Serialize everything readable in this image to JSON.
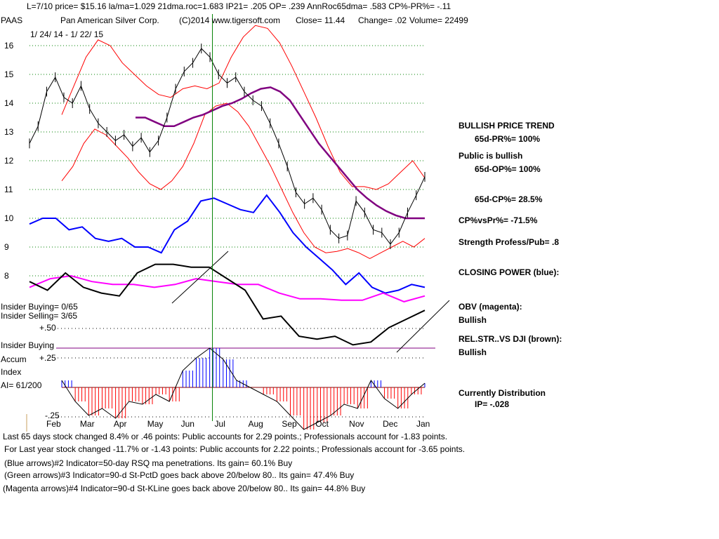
{
  "header": {
    "line1": "L=7/10  price= $15.16  la/ma=1.029 21dma.roc=1.683 IP21= .205 OP= .239 AnnRoc65dma= .583 CP%-PR%= -.11",
    "ticker": "PAAS",
    "company": "Pan American Silver Corp.",
    "copyright": "(C)2014 www.tigersoft.com",
    "close": "Close=  11.44",
    "change": "Change= .02",
    "volume": "Volume= 22499",
    "date_range": "1/ 24/ 14 - 1/ 22/ 15"
  },
  "colors": {
    "price": "#000000",
    "bands": "#ff0000",
    "ma65": "#800080",
    "closing_power": "#0000ff",
    "obv": "#ff00ff",
    "rel_str": "#000000",
    "signal_line": "#008000",
    "accum_pos": "#0000ff",
    "accum_neg": "#ff0000"
  },
  "side": {
    "trend": "BULLISH PRICE TREND",
    "pr": "65d-PR%= 100%",
    "public": "Public is bullish",
    "op": "65d-OP%= 100%",
    "cp": "65d-CP%= 28.5%",
    "cpvspr": "CP%vsPr%= -71.5%",
    "strength": "Strength Profess/Pub= .8",
    "closing_power": "CLOSING POWER (blue):",
    "obv": "OBV (magenta):",
    "obv_state": "Bullish",
    "relstr": "REL.STR..VS DJI (brown):",
    "relstr_state": "Bullish",
    "distribution": "Currently Distribution",
    "ip": "IP= -.028"
  },
  "left_panel": {
    "insider_buying": "Insider Buying= 0/65",
    "insider_selling": "Insider Selling= 3/65",
    "plus50": "+.50",
    "insider_buying_line": "Insider Buying",
    "plus25": "+.25",
    "accum": "Accum",
    "index": "Index",
    "ai": "AI= 61/200",
    "minus25": "-.25"
  },
  "chart_data": {
    "type": "line",
    "title": "PAAS Pan American Silver Corp.",
    "y_ticks": [
      16,
      15,
      14,
      13,
      12,
      11,
      10,
      9,
      8
    ],
    "ylim": [
      7.6,
      16.3
    ],
    "months": [
      "Feb",
      "Mar",
      "Apr",
      "May",
      "Jun",
      "Jul",
      "Aug",
      "Sep",
      "Oct",
      "Nov",
      "Dec",
      "Jan"
    ],
    "price_close": [
      12.6,
      13.2,
      14.4,
      14.9,
      14.2,
      14.0,
      14.6,
      13.8,
      13.3,
      13.0,
      12.7,
      12.9,
      12.5,
      12.8,
      12.3,
      12.7,
      13.5,
      14.5,
      15.1,
      15.4,
      15.9,
      15.6,
      15.0,
      14.7,
      14.9,
      14.4,
      14.1,
      13.9,
      13.3,
      12.6,
      11.8,
      10.9,
      10.5,
      10.7,
      10.3,
      9.6,
      9.3,
      9.4,
      10.6,
      10.2,
      9.6,
      9.5,
      9.1,
      9.5,
      10.2,
      10.8,
      11.44
    ],
    "ma65": [
      null,
      null,
      null,
      null,
      null,
      null,
      null,
      null,
      null,
      null,
      null,
      13.5,
      13.5,
      13.35,
      13.2,
      13.2,
      13.35,
      13.5,
      13.6,
      13.75,
      13.9,
      14.0,
      14.15,
      14.35,
      14.5,
      14.55,
      14.4,
      14.1,
      13.6,
      13.1,
      12.6,
      12.2,
      11.8,
      11.4,
      11.0,
      10.7,
      10.45,
      10.25,
      10.1,
      10.0,
      10.0,
      10.0
    ],
    "upper_band": [
      13.6,
      14.6,
      15.6,
      16.2,
      16.0,
      15.4,
      15.0,
      14.6,
      14.3,
      14.2,
      14.5,
      14.6,
      14.5,
      14.7,
      15.6,
      16.3,
      16.7,
      16.6,
      16.1,
      15.3,
      14.4,
      13.5,
      12.5,
      11.6,
      11.1,
      11.1,
      11.0,
      11.2,
      11.6,
      12.0,
      11.4
    ],
    "lower_band": [
      11.3,
      11.8,
      12.6,
      13.1,
      12.9,
      12.5,
      12.1,
      11.6,
      11.2,
      11.0,
      11.3,
      11.8,
      12.6,
      13.6,
      13.9,
      14.0,
      13.7,
      13.2,
      12.5,
      11.8,
      11.0,
      10.2,
      9.5,
      9.0,
      8.8,
      8.85,
      8.95,
      8.8,
      8.6,
      8.8,
      9.0,
      9.2,
      9.0,
      9.3
    ],
    "closing_power": [
      9.8,
      10.0,
      10.0,
      9.6,
      9.7,
      9.3,
      9.2,
      9.3,
      9.0,
      9.0,
      8.8,
      9.6,
      9.9,
      10.6,
      10.7,
      10.5,
      10.3,
      10.2,
      10.8,
      10.2,
      9.5,
      9.0,
      8.6,
      8.2,
      7.7,
      8.1,
      7.6,
      7.4,
      7.5,
      7.7,
      7.6
    ],
    "obv": [
      7.6,
      7.9,
      8.0,
      7.8,
      7.7,
      7.7,
      7.6,
      7.7,
      7.9,
      7.8,
      7.7,
      7.7,
      7.4,
      7.2,
      7.2,
      7.15,
      7.15,
      7.4,
      7.1,
      7.3
    ],
    "rel_str": [
      7.8,
      7.5,
      8.1,
      7.6,
      7.4,
      7.3,
      8.1,
      8.4,
      8.4,
      8.3,
      8.3,
      7.9,
      7.5,
      6.5,
      6.6,
      5.9,
      5.8,
      5.9,
      5.6,
      5.7,
      6.2,
      6.5,
      6.8
    ],
    "accum_index": [
      0.05,
      -0.1,
      -0.2,
      -0.15,
      -0.22,
      -0.1,
      -0.12,
      -0.05,
      -0.1,
      0.12,
      0.21,
      0.28,
      0.2,
      0.05,
      0.0,
      -0.05,
      -0.1,
      -0.2,
      -0.3,
      -0.25,
      -0.2,
      -0.12,
      -0.15,
      0.05,
      -0.08,
      -0.15,
      -0.05,
      0.03
    ],
    "signal_date": "Jul"
  },
  "footer": {
    "line1": "Last 65 days stock changed  8.4% or  .46 points:  Public accounts for  2.29 points.;  Professionals account for -1.83 points.",
    "line2": "For Last year stock changed -11.7% or -1.43 points:  Public accounts for  2.22 points.;  Professionals account for -3.65 points.",
    "line3": "(Blue arrows)#2 Indicator=50-day RSQ ma penetrations. Its gain= 60.1% Buy",
    "line4": "(Green arrows)#3 Indicator=90-d St-PctD goes back above 20/below 80.. Its gain= 47.4% Buy",
    "line5": "(Magenta arrows)#4 Indicator=90-d St-KLine goes back above 20/below 80.. Its gain= 44.8% Buy"
  }
}
